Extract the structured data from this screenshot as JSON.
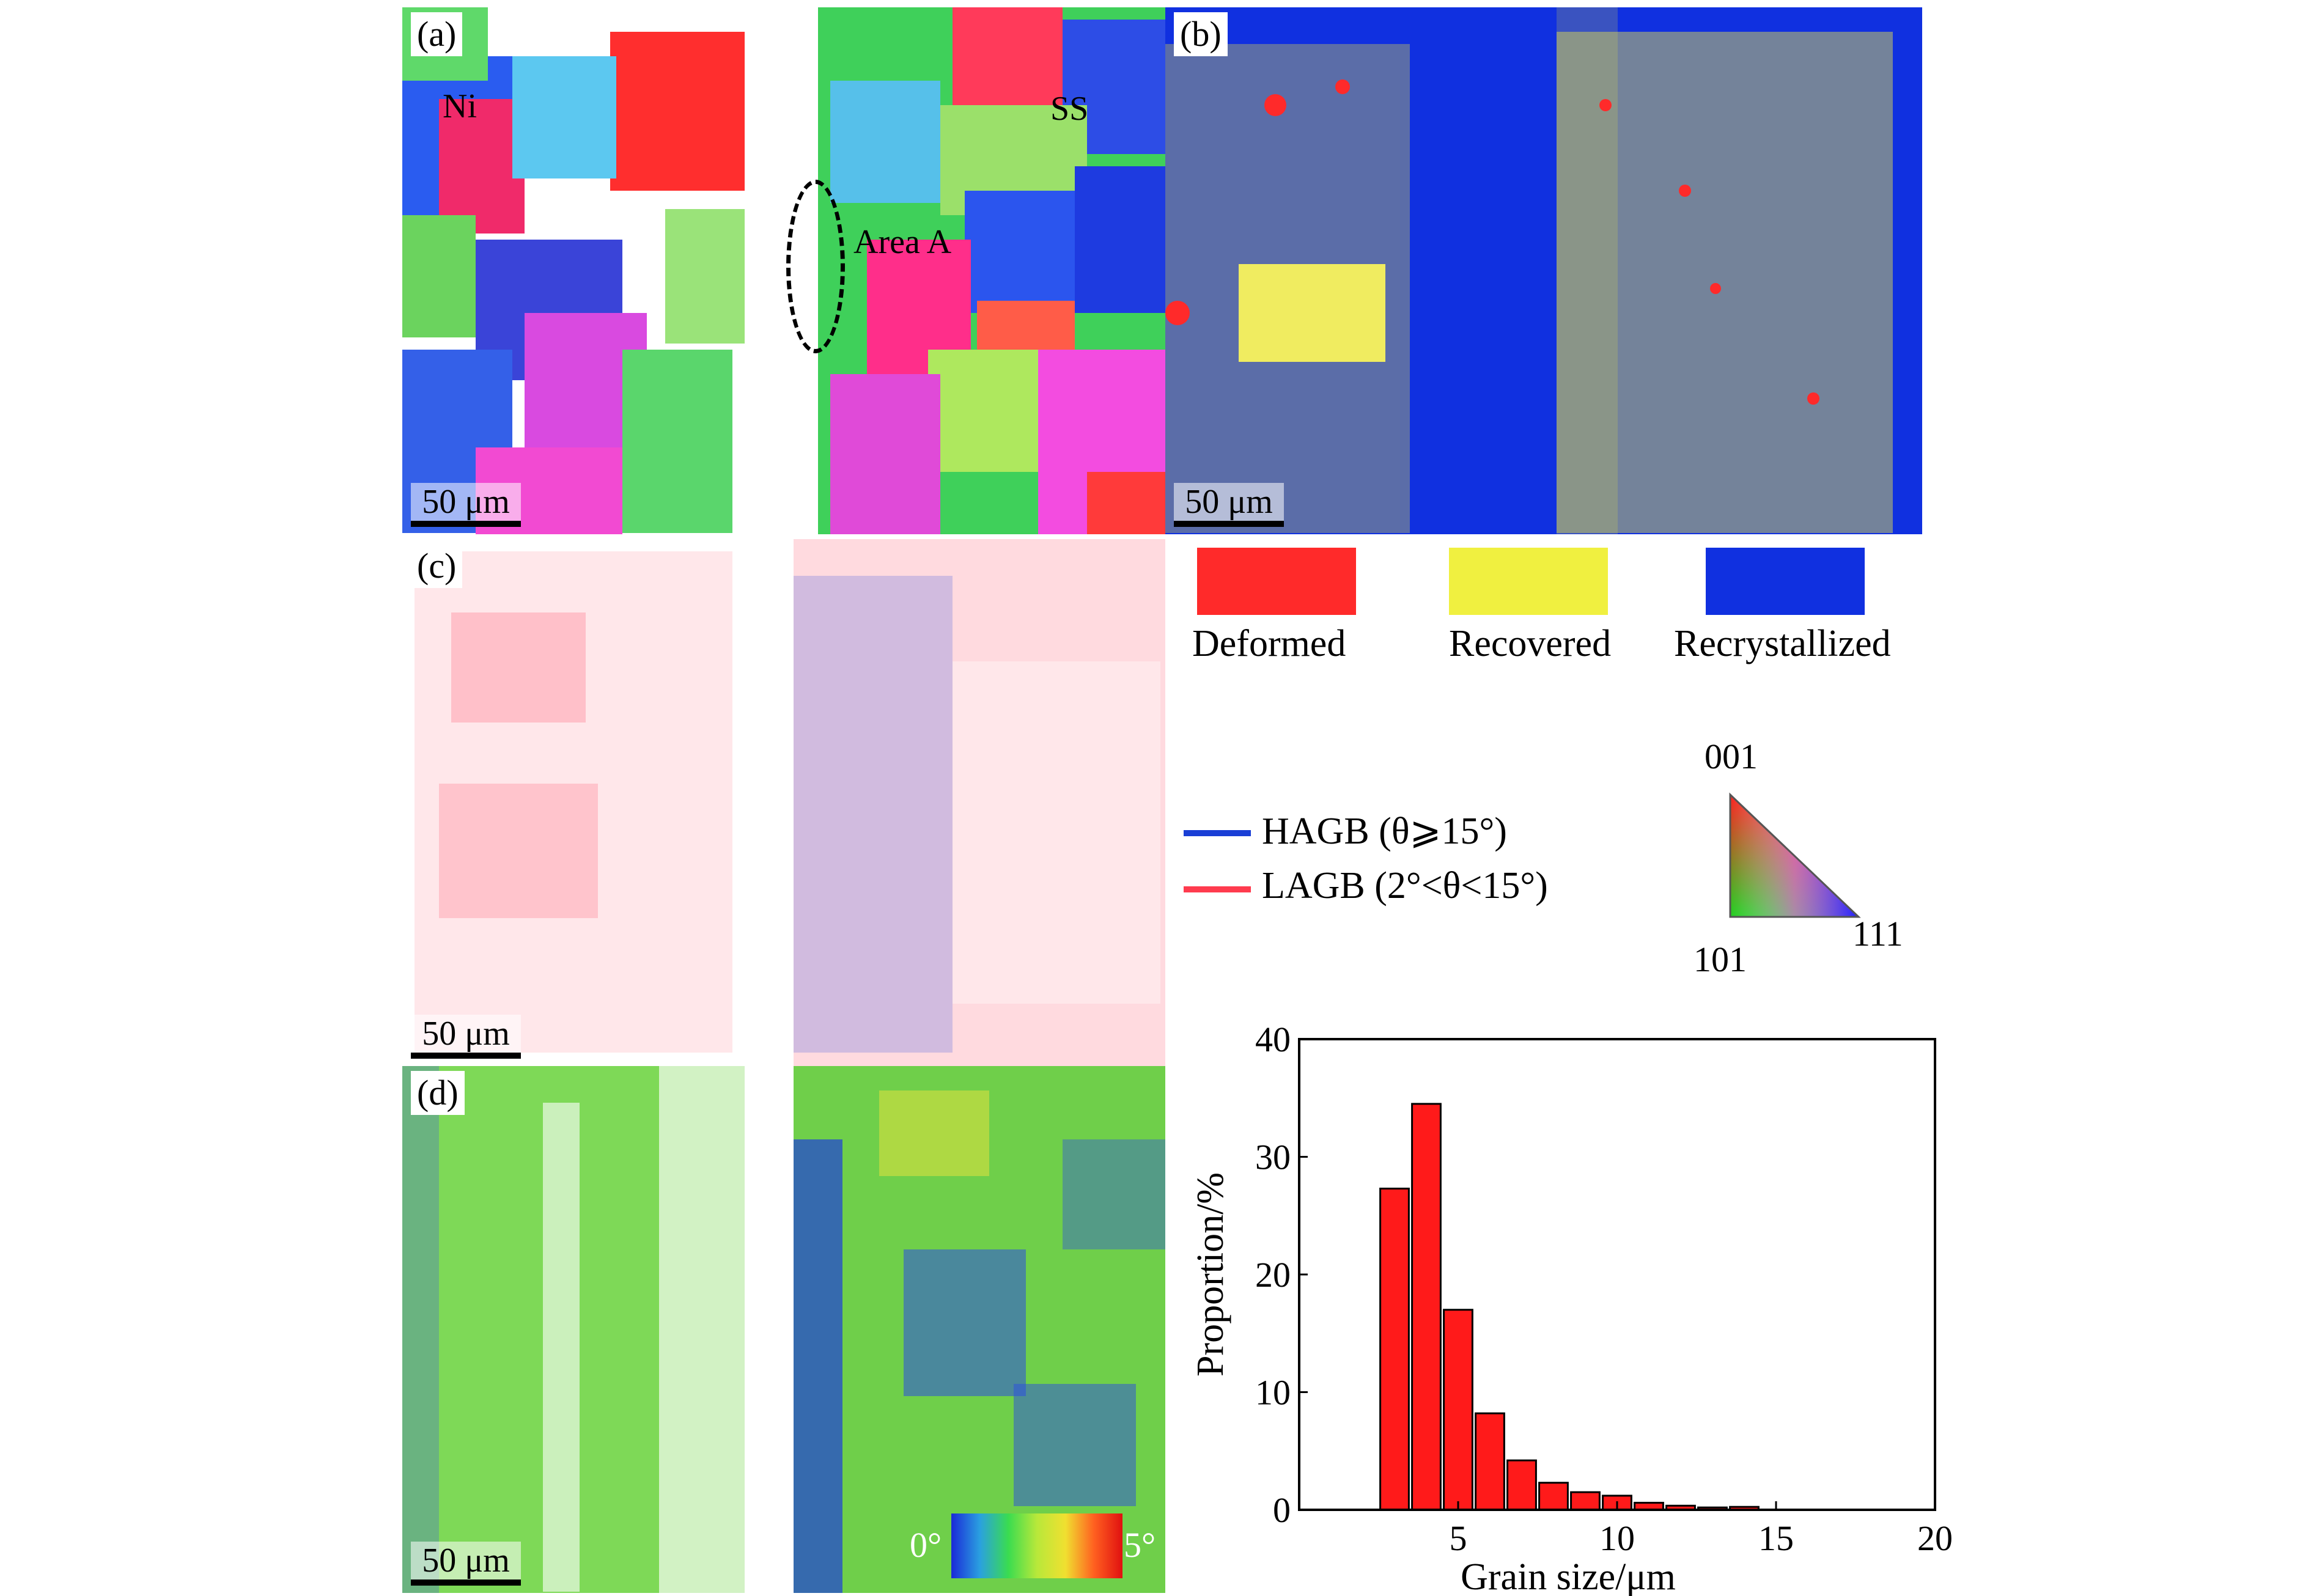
{
  "panels": {
    "a": {
      "label": "(a)",
      "scale": "50 μm",
      "annotations": {
        "ni": "Ni",
        "ss": "SS",
        "area": "Area A"
      }
    },
    "b": {
      "label": "(b)",
      "scale": "50 μm"
    },
    "c": {
      "label": "(c)",
      "scale": "50 μm"
    },
    "d": {
      "label": "(d)",
      "scale": "50 μm",
      "colorbar": {
        "min": "0°",
        "max": "5°"
      }
    }
  },
  "recrystallization_legend": [
    {
      "label": "Deformed",
      "color": "#ff2a2a"
    },
    {
      "label": "Recovered",
      "color": "#f0f040"
    },
    {
      "label": "Recrystallized",
      "color": "#1030e0"
    }
  ],
  "boundary_legend": [
    {
      "label": "HAGB (θ⩾15°)",
      "color": "#1a3fd6"
    },
    {
      "label": "LAGB (2°<θ<15°)",
      "color": "#ff3b4e"
    }
  ],
  "ipf": {
    "top": "001",
    "left": "101",
    "right": "111"
  },
  "colors": {
    "bar": "#ff1a1a",
    "hagb": "#1a3fd6",
    "lagb": "#ff3b4e"
  },
  "chart_data": {
    "type": "bar",
    "xlabel": "Grain size/μm",
    "ylabel": "Proportion/%",
    "xlim": [
      0,
      20
    ],
    "ylim": [
      0,
      40
    ],
    "xticks": [
      5,
      10,
      15,
      20
    ],
    "yticks": [
      0,
      10,
      20,
      30,
      40
    ],
    "bar_width": 0.9,
    "x": [
      3,
      4,
      5,
      6,
      7,
      8,
      9,
      10,
      11,
      12,
      13,
      14
    ],
    "values": [
      27.3,
      34.5,
      17.0,
      8.2,
      4.2,
      2.3,
      1.5,
      1.2,
      0.6,
      0.35,
      0.2,
      0.25
    ]
  }
}
